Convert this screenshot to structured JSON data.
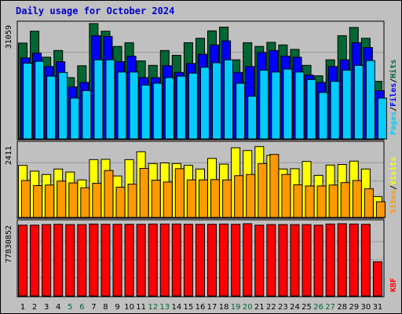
{
  "chart_data": {
    "title": "Daily usage for October 2024",
    "type": "bar",
    "days": [
      "1",
      "2",
      "3",
      "4",
      "5",
      "6",
      "7",
      "8",
      "9",
      "10",
      "11",
      "12",
      "13",
      "14",
      "15",
      "16",
      "17",
      "18",
      "19",
      "20",
      "21",
      "22",
      "23",
      "24",
      "25",
      "26",
      "27",
      "28",
      "29",
      "30",
      "31"
    ],
    "weekend_days": [
      "5",
      "6",
      "12",
      "13",
      "19",
      "20",
      "26",
      "27"
    ],
    "grid": true,
    "colors": {
      "hits": "#006633",
      "files": "#0000ff",
      "pages": "#00ccff",
      "visits": "#ffff00",
      "sites": "#ff9900",
      "kbf": "#ff0000",
      "weekday_label": "#000000",
      "weekend_label": "#006633",
      "background": "#c0c0c0",
      "title": "#0000cc"
    },
    "panels": [
      {
        "id": "hits-files-pages",
        "ytick": "31059",
        "ymax": 31059,
        "legend": [
          {
            "label": "Hits",
            "color": "#006633"
          },
          {
            "label": "Files",
            "color": "#0000ff"
          },
          {
            "label": "Pages",
            "color": "#00ccff"
          }
        ],
        "series": [
          {
            "name": "Hits",
            "color": "#006633",
            "values": [
              25800,
              29000,
              22000,
              23800,
              16500,
              19700,
              31059,
              29000,
              24900,
              25900,
              21000,
              19800,
              23800,
              22500,
              25900,
              27100,
              29100,
              30100,
              21300,
              25900,
              24900,
              26000,
              25300,
              24100,
              19800,
              17000,
              21300,
              27800,
              30000,
              27100,
              15500
            ]
          },
          {
            "name": "Files",
            "color": "#0000ff",
            "values": [
              21800,
              23100,
              19500,
              20800,
              14000,
              15200,
              27800,
              27600,
              20800,
              22300,
              16500,
              16500,
              19700,
              17900,
              20300,
              22800,
              25300,
              26400,
              17900,
              19500,
              23300,
              23800,
              22300,
              22000,
              17200,
              15200,
              19500,
              21300,
              25900,
              24600,
              13000
            ]
          },
          {
            "name": "Pages",
            "color": "#00ccff",
            "values": [
              20400,
              20900,
              16900,
              17900,
              11000,
              13000,
              21300,
              21300,
              18000,
              18000,
              14500,
              15000,
              16500,
              16900,
              17700,
              19300,
              20500,
              21300,
              15000,
              11500,
              18500,
              18000,
              18800,
              18000,
              16000,
              12500,
              15500,
              18500,
              19800,
              21100,
              11000
            ]
          }
        ]
      },
      {
        "id": "visits-sites",
        "ytick": "2411",
        "ymax": 2411,
        "legend": [
          {
            "label": "Visits",
            "color": "#ffff00"
          },
          {
            "label": "Sites",
            "color": "#ff9900"
          }
        ],
        "series": [
          {
            "name": "Visits",
            "color": "#ffff00",
            "values": [
              1720,
              1530,
              1420,
              1600,
              1500,
              1240,
              1910,
              1920,
              1370,
              1910,
              2170,
              1780,
              1800,
              1780,
              1720,
              1600,
              1950,
              1760,
              2300,
              2210,
              2340,
              2050,
              1600,
              1610,
              1850,
              1390,
              1730,
              1750,
              1860,
              1600,
              690
            ]
          },
          {
            "name": "Sites",
            "color": "#ff9900",
            "values": [
              1220,
              1050,
              1070,
              1200,
              1140,
              980,
              1130,
              1550,
              1000,
              1100,
              1620,
              1230,
              1170,
              1610,
              1240,
              1240,
              1250,
              1240,
              1380,
              1420,
              1780,
              2080,
              1420,
              1080,
              1040,
              1040,
              1070,
              1150,
              1220,
              950,
              520
            ]
          }
        ]
      },
      {
        "id": "kbf",
        "ytick": "77830852",
        "ymax": 77830852,
        "legend": [
          {
            "label": "KBF",
            "color": "#ff0000"
          }
        ],
        "series": [
          {
            "name": "KBF",
            "color": "#ff0000",
            "values": [
              76300000,
              76300000,
              76900000,
              77200000,
              76900000,
              76900000,
              77500000,
              77200000,
              77200000,
              77200000,
              77200000,
              77500000,
              77500000,
              77500000,
              77200000,
              77200000,
              77200000,
              77500000,
              77200000,
              77830852,
              76300000,
              76900000,
              76900000,
              76900000,
              76900000,
              76300000,
              77500000,
              77830852,
              77500000,
              77200000,
              36800000
            ]
          }
        ]
      }
    ]
  }
}
